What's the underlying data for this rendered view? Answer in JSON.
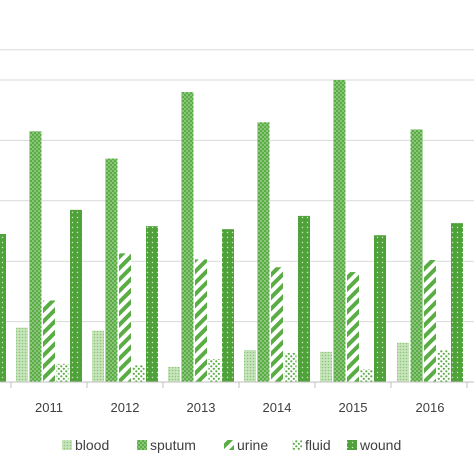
{
  "chart_data": {
    "type": "bar",
    "title": "",
    "xlabel": "",
    "ylabel": "",
    "categories": [
      "2011",
      "2012",
      "2013",
      "2014",
      "2015",
      "2016"
    ],
    "ylim": [
      0,
      50
    ],
    "grid": true,
    "legend_position": "bottom",
    "series": [
      {
        "name": "blood",
        "pattern": "light-dots",
        "values": [
          9,
          8.5,
          2.5,
          5.3,
          5,
          6.5
        ]
      },
      {
        "name": "sputum",
        "pattern": "dense-dots",
        "values": [
          41.5,
          37,
          48,
          43,
          50,
          41.8
        ]
      },
      {
        "name": "urine",
        "pattern": "diagonal",
        "values": [
          13.5,
          21.3,
          20.3,
          19,
          18.2,
          20.2
        ]
      },
      {
        "name": "fluid",
        "pattern": "sparse-dots",
        "values": [
          3,
          2.8,
          3.8,
          4.8,
          2.1,
          5.3
        ]
      },
      {
        "name": "wound",
        "pattern": "small-dots",
        "values": [
          28.5,
          25.8,
          25.3,
          27.5,
          24.3,
          26.3
        ]
      }
    ],
    "partial_left_value": 24.5,
    "colors": {
      "bar": "#5aac44",
      "light": "#a9d49b",
      "grid": "#d9d9d9",
      "text": "#404040"
    }
  }
}
